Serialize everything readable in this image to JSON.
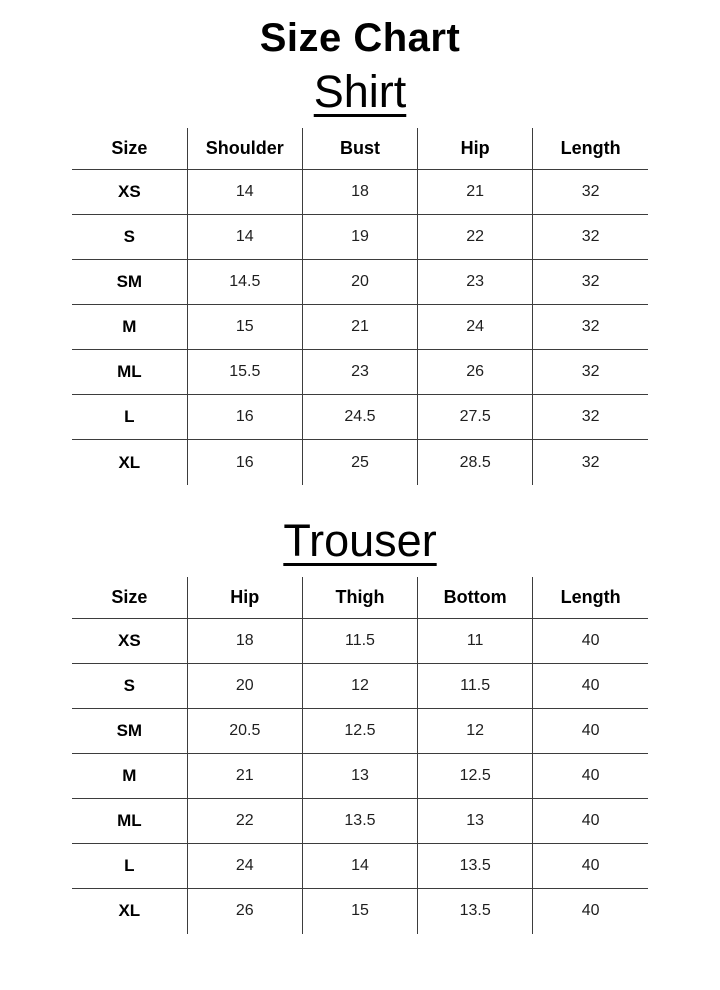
{
  "page": {
    "title": "Size Chart"
  },
  "colors": {
    "background": "#ffffff",
    "text": "#000000",
    "grid_line": "#3d3d3d"
  },
  "tables": [
    {
      "name": "Shirt",
      "columns": [
        "Size",
        "Shoulder",
        "Bust",
        "Hip",
        "Length"
      ],
      "rows": [
        [
          "XS",
          "14",
          "18",
          "21",
          "32"
        ],
        [
          "S",
          "14",
          "19",
          "22",
          "32"
        ],
        [
          "SM",
          "14.5",
          "20",
          "23",
          "32"
        ],
        [
          "M",
          "15",
          "21",
          "24",
          "32"
        ],
        [
          "ML",
          "15.5",
          "23",
          "26",
          "32"
        ],
        [
          "L",
          "16",
          "24.5",
          "27.5",
          "32"
        ],
        [
          "XL",
          "16",
          "25",
          "28.5",
          "32"
        ]
      ]
    },
    {
      "name": "Trouser",
      "columns": [
        "Size",
        "Hip",
        "Thigh",
        "Bottom",
        "Length"
      ],
      "rows": [
        [
          "XS",
          "18",
          "11.5",
          "11",
          "40"
        ],
        [
          "S",
          "20",
          "12",
          "11.5",
          "40"
        ],
        [
          "SM",
          "20.5",
          "12.5",
          "12",
          "40"
        ],
        [
          "M",
          "21",
          "13",
          "12.5",
          "40"
        ],
        [
          "ML",
          "22",
          "13.5",
          "13",
          "40"
        ],
        [
          "L",
          "24",
          "14",
          "13.5",
          "40"
        ],
        [
          "XL",
          "26",
          "15",
          "13.5",
          "40"
        ]
      ]
    }
  ]
}
